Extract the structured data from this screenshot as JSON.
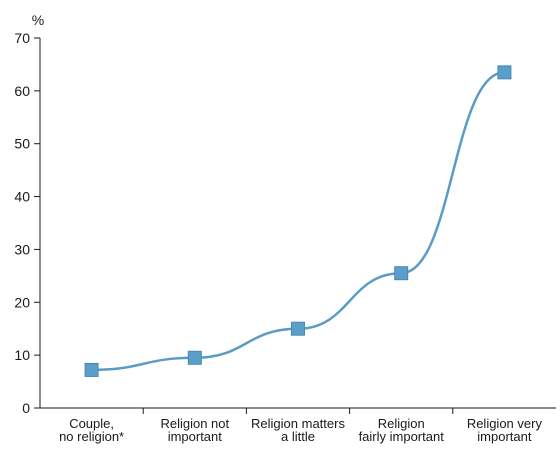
{
  "chart_data": {
    "type": "line",
    "unit_label": "%",
    "categories": [
      [
        "Couple,",
        "no religion*"
      ],
      [
        "Religion not",
        "important"
      ],
      [
        "Religion matters",
        "a little"
      ],
      [
        "Religion",
        "fairly important"
      ],
      [
        "Religion very",
        "important"
      ]
    ],
    "values": [
      7.2,
      9.5,
      15.0,
      25.5,
      63.5
    ],
    "ylim": [
      0,
      70
    ],
    "yticks": [
      0,
      10,
      20,
      30,
      40,
      50,
      60,
      70
    ],
    "grid": false,
    "legend": "none",
    "colors": {
      "line": "#5b9bc4",
      "marker": "#5a9fc9",
      "axis": "#1a1a1a"
    }
  }
}
